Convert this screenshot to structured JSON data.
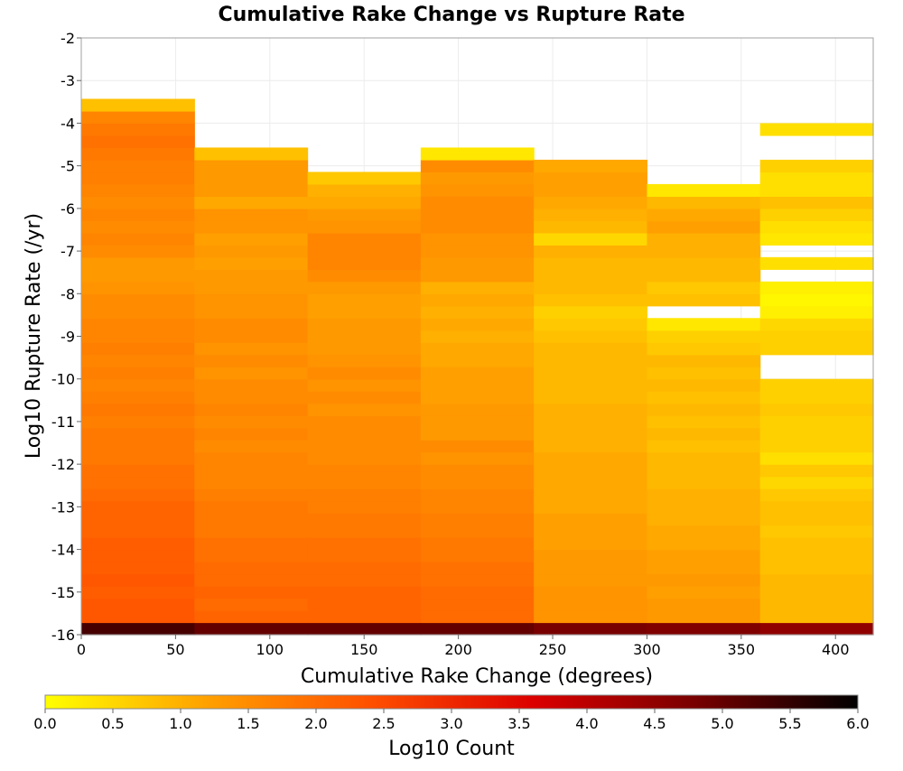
{
  "chart_data": {
    "type": "heatmap",
    "title": "Cumulative Rake Change vs Rupture Rate",
    "xlabel": "Cumulative Rake Change (degrees)",
    "ylabel": "Log10 Rupture Rate (/yr)",
    "xlim": [
      0,
      420
    ],
    "ylim": [
      -16,
      -2
    ],
    "x_ticks": [
      "0",
      "50",
      "100",
      "150",
      "200",
      "250",
      "300",
      "350",
      "400"
    ],
    "y_ticks": [
      "-2",
      "-3",
      "-4",
      "-5",
      "-6",
      "-7",
      "-8",
      "-9",
      "-10",
      "-11",
      "-12",
      "-13",
      "-14",
      "-15",
      "-16"
    ],
    "grid": true,
    "x_bin_edges": [
      0,
      60,
      120,
      180,
      240,
      300,
      360,
      420
    ],
    "y_bin_size": 0.2857,
    "y_bin_start": -16,
    "columns": [
      {
        "x_range": [
          0,
          60
        ],
        "log10_counts": [
          5.3,
          2.3,
          2.3,
          2.2,
          2.3,
          2.2,
          2.2,
          2.2,
          2.1,
          2.1,
          2.1,
          2.0,
          1.9,
          1.9,
          1.8,
          1.8,
          1.8,
          1.7,
          1.8,
          1.7,
          1.6,
          1.7,
          1.6,
          1.7,
          1.6,
          1.6,
          1.5,
          1.5,
          1.4,
          1.3,
          1.3,
          1.5,
          1.6,
          1.5,
          1.6,
          1.5,
          1.6,
          1.7,
          1.7,
          1.8,
          1.9,
          1.8,
          1.6,
          0.8
        ]
      },
      {
        "x_range": [
          60,
          120
        ],
        "log10_counts": [
          5.0,
          2.1,
          2.0,
          2.1,
          2.0,
          2.0,
          1.9,
          1.9,
          1.8,
          1.8,
          1.8,
          1.7,
          1.6,
          1.6,
          1.6,
          1.5,
          1.6,
          1.5,
          1.6,
          1.5,
          1.5,
          1.4,
          1.5,
          1.4,
          1.5,
          1.5,
          1.4,
          1.4,
          1.3,
          1.3,
          1.2,
          1.3,
          1.2,
          1.4,
          1.4,
          1.1,
          1.3,
          1.3,
          1.3,
          0.8
        ]
      },
      {
        "x_range": [
          120,
          180
        ],
        "log10_counts": [
          5.0,
          2.1,
          2.1,
          2.1,
          2.0,
          2.0,
          1.9,
          1.9,
          1.8,
          1.8,
          1.7,
          1.7,
          1.6,
          1.6,
          1.5,
          1.5,
          1.5,
          1.5,
          1.4,
          1.5,
          1.4,
          1.5,
          1.4,
          1.3,
          1.3,
          1.3,
          1.2,
          1.2,
          1.3,
          1.5,
          1.6,
          1.6,
          1.6,
          1.4,
          1.3,
          1.1,
          1.0,
          0.7
        ]
      },
      {
        "x_range": [
          180,
          240
        ],
        "log10_counts": [
          5.0,
          2.0,
          2.0,
          2.0,
          1.9,
          1.9,
          1.8,
          1.8,
          1.7,
          1.7,
          1.6,
          1.6,
          1.5,
          1.5,
          1.4,
          1.5,
          1.3,
          1.3,
          1.3,
          1.2,
          1.2,
          1.2,
          1.1,
          1.1,
          1.0,
          1.1,
          1.0,
          1.1,
          1.0,
          1.3,
          1.3,
          1.4,
          1.4,
          1.5,
          1.5,
          1.5,
          1.4,
          1.3,
          1.5,
          0.3
        ]
      },
      {
        "x_range": [
          240,
          300
        ],
        "log10_counts": [
          4.8,
          1.4,
          1.4,
          1.4,
          1.3,
          1.3,
          1.3,
          1.2,
          1.2,
          1.2,
          1.1,
          1.1,
          1.1,
          1.1,
          1.1,
          1.0,
          1.0,
          1.0,
          1.0,
          0.9,
          0.9,
          0.9,
          0.9,
          0.9,
          0.8,
          0.7,
          0.6,
          0.8,
          0.9,
          0.9,
          0.9,
          1.0,
          0.5,
          0.9,
          1.0,
          1.1,
          1.2,
          1.2,
          1.1
        ]
      },
      {
        "x_range": [
          300,
          360
        ],
        "log10_counts": [
          4.7,
          1.3,
          1.3,
          1.2,
          1.3,
          1.2,
          1.2,
          1.1,
          1.1,
          1.0,
          1.0,
          1.0,
          0.9,
          0.9,
          0.9,
          0.8,
          0.9,
          0.8,
          0.9,
          0.8,
          0.9,
          0.8,
          0.9,
          0.7,
          0.6,
          0.3,
          null,
          0.8,
          0.7,
          0.9,
          0.9,
          1.0,
          1.0,
          1.2,
          1.1,
          0.9,
          0.3
        ]
      },
      {
        "x_range": [
          360,
          420
        ],
        "log10_counts": [
          4.5,
          0.9,
          0.9,
          0.9,
          0.9,
          0.8,
          0.8,
          0.8,
          0.7,
          0.8,
          0.8,
          0.7,
          0.5,
          0.7,
          0.4,
          0.6,
          0.6,
          0.6,
          0.7,
          0.6,
          0.6,
          null,
          null,
          0.6,
          0.6,
          0.5,
          0.2,
          0.1,
          0.2,
          null,
          0.4,
          null,
          0.3,
          0.4,
          0.6,
          0.8,
          0.4,
          0.4,
          0.6,
          null,
          null,
          0.4
        ]
      }
    ],
    "colorbar": {
      "label": "Log10 Count",
      "range": [
        0,
        6
      ],
      "ticks": [
        "0.0",
        "0.5",
        "1.0",
        "1.5",
        "2.0",
        "2.5",
        "3.0",
        "3.5",
        "4.0",
        "4.5",
        "5.0",
        "5.5",
        "6.0"
      ],
      "colors": [
        "#ffff00",
        "#ffa000",
        "#ff5000",
        "#dc0000",
        "#780000",
        "#000000"
      ]
    }
  }
}
